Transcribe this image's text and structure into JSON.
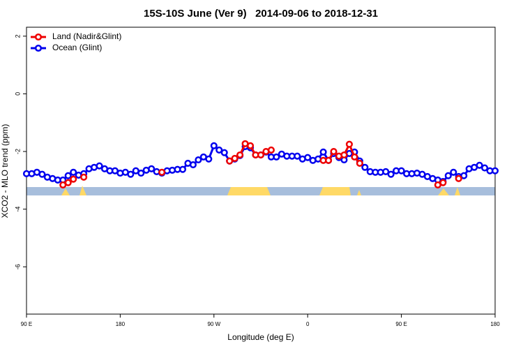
{
  "chart_data": {
    "type": "line",
    "title": "15S-10S June (Ver 9)   2014-09-06 to 2018-12-31",
    "xlabel": "Longitude (deg E)",
    "ylabel": "XCO2 - MLO trend (ppm)",
    "x": [
      90,
      95,
      100,
      105,
      110,
      115,
      120,
      125,
      130,
      135,
      140,
      145,
      150,
      155,
      160,
      165,
      170,
      175,
      180,
      185,
      190,
      195,
      200,
      205,
      210,
      215,
      220,
      225,
      230,
      235,
      240,
      245,
      250,
      255,
      260,
      265,
      270,
      275,
      280,
      285,
      290,
      295,
      300,
      305,
      310,
      315,
      320,
      325,
      330,
      335,
      340,
      345,
      350,
      355,
      360,
      365,
      370,
      375,
      380,
      385,
      390,
      395,
      400,
      405,
      410,
      415,
      420,
      425,
      430,
      435,
      440,
      445,
      450,
      455,
      460,
      465,
      470,
      475,
      480,
      485,
      490,
      495,
      500,
      505,
      510,
      515,
      520,
      525,
      530,
      535,
      540
    ],
    "series": [
      {
        "name": "Ocean (Glint)",
        "color": "#0000ee",
        "values": [
          -2.77,
          -2.77,
          -2.72,
          -2.79,
          -2.89,
          -2.94,
          -2.99,
          -2.99,
          -2.84,
          -2.72,
          -2.82,
          -2.77,
          -2.6,
          -2.55,
          -2.5,
          -2.6,
          -2.67,
          -2.67,
          -2.75,
          -2.72,
          -2.79,
          -2.67,
          -2.75,
          -2.65,
          -2.6,
          -2.7,
          -2.75,
          -2.67,
          -2.65,
          -2.62,
          -2.62,
          -2.41,
          -2.46,
          -2.29,
          -2.19,
          -2.26,
          -1.8,
          -1.95,
          -2.04,
          -2.33,
          -2.26,
          -2.14,
          -1.83,
          -1.87,
          -2.12,
          -2.12,
          -2.02,
          -2.19,
          -2.19,
          -2.09,
          -2.16,
          -2.16,
          -2.16,
          -2.26,
          -2.21,
          -2.31,
          -2.26,
          -2.02,
          -2.31,
          -2.07,
          -2.21,
          -2.29,
          -2.07,
          -2.02,
          -2.33,
          -2.55,
          -2.7,
          -2.72,
          -2.72,
          -2.7,
          -2.79,
          -2.67,
          -2.67,
          -2.77,
          -2.77,
          -2.75,
          -2.79,
          -2.87,
          -2.94,
          -2.99,
          -3.04,
          -2.84,
          -2.72,
          -2.87,
          -2.84,
          -2.6,
          -2.55,
          -2.48,
          -2.57,
          -2.67,
          -2.67
        ]
      },
      {
        "name": "Land (Nadir&Glint)",
        "color": "#ee0000",
        "values": [
          null,
          null,
          null,
          null,
          null,
          null,
          null,
          -3.16,
          -3.08,
          -2.96,
          null,
          -2.89,
          null,
          null,
          null,
          null,
          null,
          null,
          null,
          null,
          null,
          null,
          null,
          null,
          null,
          null,
          -2.72,
          null,
          null,
          null,
          null,
          null,
          null,
          null,
          null,
          null,
          null,
          null,
          null,
          -2.33,
          -2.24,
          -2.12,
          -1.73,
          -1.8,
          -2.12,
          -2.12,
          -2.0,
          -1.95,
          null,
          null,
          null,
          null,
          null,
          null,
          null,
          null,
          null,
          -2.31,
          -2.31,
          -2.0,
          -2.16,
          -2.12,
          -1.75,
          -2.19,
          -2.41,
          null,
          null,
          null,
          null,
          null,
          null,
          null,
          null,
          null,
          null,
          null,
          null,
          null,
          null,
          -3.16,
          -3.08,
          null,
          null,
          -2.94,
          null,
          null,
          null,
          null,
          null,
          null,
          null
        ]
      }
    ],
    "legend_order": [
      "Land (Nadir&Glint)",
      "Ocean (Glint)"
    ],
    "xlim": [
      90,
      540
    ],
    "xticks": [
      {
        "value": 90,
        "label": "90 E"
      },
      180,
      {
        "value": 270,
        "label": "90 W"
      },
      {
        "value": 360,
        "label": "0"
      },
      {
        "value": 450,
        "label": "90 E"
      },
      {
        "value": 540,
        "label": "180"
      }
    ],
    "ylim": [
      -7.64,
      2.31
    ],
    "yticks": [
      -6,
      -4,
      -2,
      0,
      2
    ]
  }
}
